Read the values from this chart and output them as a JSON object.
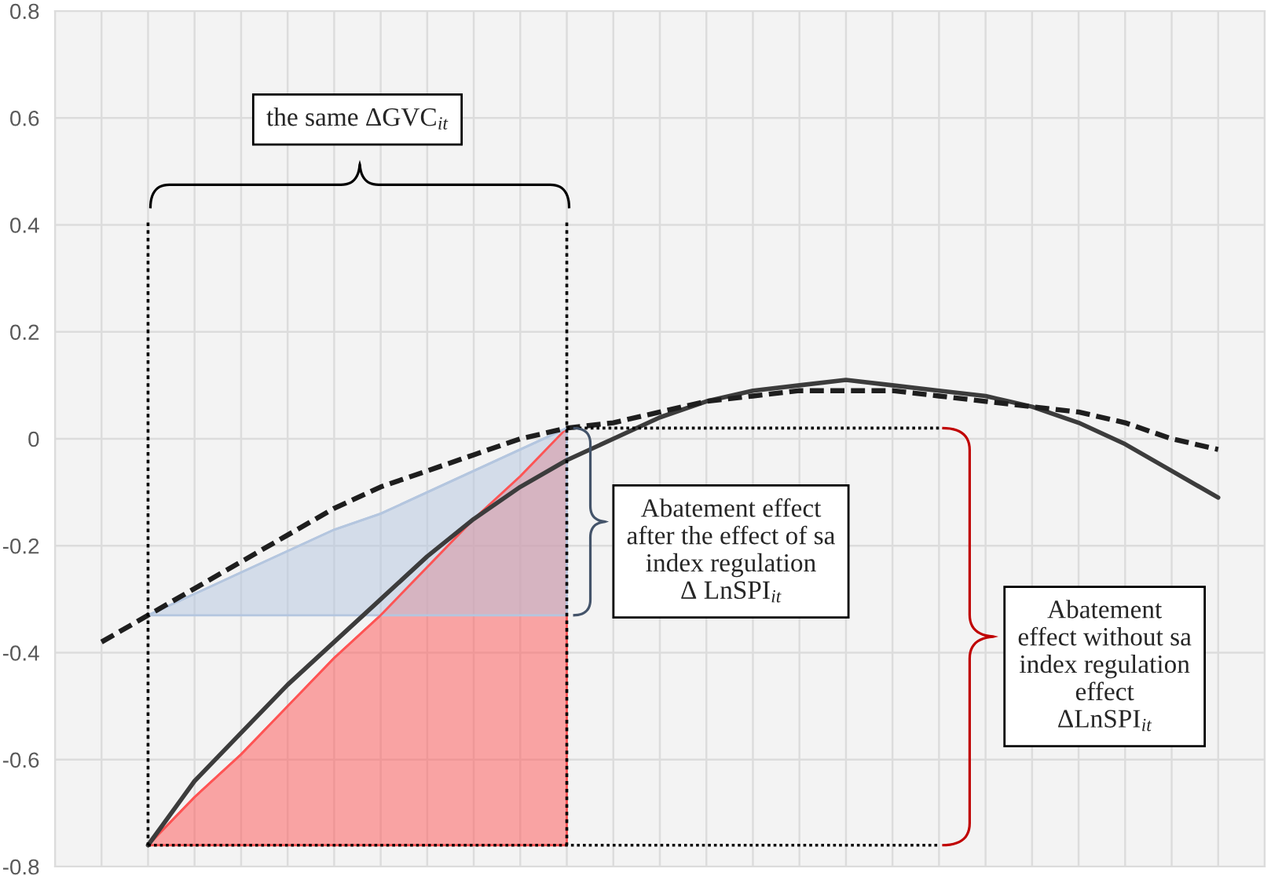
{
  "chart_data": {
    "type": "line",
    "categories": [
      null,
      null,
      null,
      null,
      null,
      null,
      null,
      null,
      null,
      null,
      null,
      null,
      null,
      null,
      null,
      null,
      null,
      null,
      null,
      null,
      null,
      null,
      null,
      null,
      null,
      null,
      null
    ],
    "ylim": [
      -0.8,
      0.8
    ],
    "yticks": [
      -0.8,
      -0.6,
      -0.4,
      -0.2,
      0,
      0.2,
      0.4,
      0.6,
      0.8
    ],
    "grid": true,
    "tick_labels": "y",
    "series": [
      {
        "color": "#3c3c3c",
        "line_style": "solid",
        "values": [
          null,
          null,
          -0.76,
          -0.64,
          -0.55,
          -0.46,
          -0.38,
          -0.3,
          -0.22,
          -0.15,
          -0.09,
          -0.04,
          0,
          0.04,
          0.07,
          0.09,
          0.1,
          0.11,
          0.1,
          0.09,
          0.08,
          0.06,
          0.03,
          -0.01,
          -0.06,
          -0.11,
          null
        ]
      },
      {
        "color": "#1e1e1e",
        "line_style": "dashed",
        "values": [
          null,
          -0.38,
          -0.33,
          -0.28,
          -0.23,
          -0.18,
          -0.13,
          -0.09,
          -0.06,
          -0.03,
          0,
          0.02,
          0.03,
          0.05,
          0.07,
          0.08,
          0.09,
          0.09,
          0.09,
          0.08,
          0.07,
          0.06,
          0.05,
          0.03,
          0,
          -0.02,
          null
        ]
      },
      {
        "color": "#ff5454",
        "values": [
          null,
          null,
          -0.76,
          -0.67,
          -0.59,
          -0.5,
          -0.41,
          -0.33,
          -0.24,
          -0.15,
          -0.07,
          0.02,
          null,
          null,
          null,
          null,
          null,
          null,
          null,
          null,
          null,
          null,
          null,
          null,
          null,
          null,
          null
        ],
        "lower": [
          null,
          null,
          -0.76,
          -0.76,
          -0.76,
          -0.76,
          -0.76,
          -0.76,
          -0.76,
          -0.76,
          -0.76,
          -0.76,
          null,
          null,
          null,
          null,
          null,
          null,
          null,
          null,
          null,
          null,
          null,
          null,
          null,
          null,
          null
        ],
        "upper": [
          null,
          null,
          -0.76,
          -0.67,
          -0.59,
          -0.5,
          -0.41,
          -0.33,
          -0.24,
          -0.15,
          -0.07,
          0.02,
          null,
          null,
          null,
          null,
          null,
          null,
          null,
          null,
          null,
          null,
          null,
          null,
          null,
          null,
          null
        ]
      },
      {
        "color": "#b4c6df",
        "values": [
          null,
          null,
          -0.33,
          -0.29,
          -0.25,
          -0.21,
          -0.17,
          -0.14,
          -0.1,
          -0.06,
          -0.02,
          0.02,
          null,
          null,
          null,
          null,
          null,
          null,
          null,
          null,
          null,
          null,
          null,
          null,
          null,
          null,
          null
        ],
        "lower": [
          null,
          null,
          -0.33,
          -0.33,
          -0.33,
          -0.33,
          -0.33,
          -0.33,
          -0.33,
          -0.33,
          -0.33,
          -0.33,
          null,
          null,
          null,
          null,
          null,
          null,
          null,
          null,
          null,
          null,
          null,
          null,
          null,
          null,
          null
        ],
        "upper": [
          null,
          null,
          -0.33,
          -0.29,
          -0.25,
          -0.21,
          -0.17,
          -0.14,
          -0.1,
          -0.06,
          -0.02,
          0.02,
          null,
          null,
          null,
          null,
          null,
          null,
          null,
          null,
          null,
          null,
          null,
          null,
          null,
          null,
          null
        ]
      },
      {
        "color": "#000000",
        "line_style": "dotted",
        "values": [
          null,
          null,
          null,
          null,
          null,
          null,
          null,
          null,
          null,
          null,
          null,
          0.02,
          0.02,
          0.02,
          0.02,
          0.02,
          0.02,
          0.02,
          0.02,
          0.02,
          null,
          null,
          null,
          null,
          null,
          null,
          null
        ]
      },
      {
        "color": "#000000",
        "line_style": "dotted",
        "values": [
          null,
          null,
          -0.76,
          -0.76,
          -0.76,
          -0.76,
          -0.76,
          -0.76,
          -0.76,
          -0.76,
          -0.76,
          -0.76,
          -0.76,
          -0.76,
          -0.76,
          -0.76,
          -0.76,
          -0.76,
          -0.76,
          -0.76,
          null,
          null,
          null,
          null,
          null,
          null,
          null
        ]
      }
    ],
    "annotations": [
      "the same ΔGVC$_{it}$",
      "Abatement effect\nafter the effect of sa\nindex regulation\nΔ LnSPI$_{it}$",
      "Abatement\neffect without sa\nindex regulation\neffect\nΔLnSPI$_{it}$"
    ]
  }
}
